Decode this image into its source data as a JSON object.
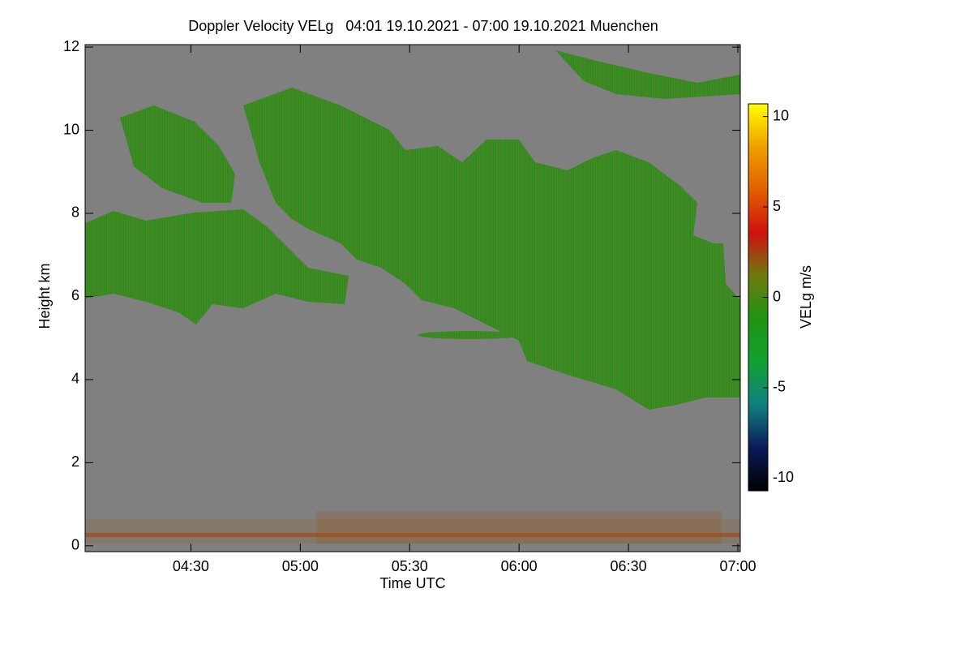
{
  "chart_data": {
    "type": "heatmap",
    "title": "Doppler Velocity VELg   04:01 19.10.2021 - 07:00 19.10.2021 Muenchen",
    "x_label": "Time UTC",
    "y_label": "Height km",
    "xlim": [
      "04:01",
      "07:00"
    ],
    "xticks": [
      "04:30",
      "05:00",
      "05:30",
      "06:00",
      "06:30",
      "07:00"
    ],
    "ylim": [
      -0.14,
      12.06
    ],
    "yticks": [
      0,
      2,
      4,
      6,
      8,
      10,
      12
    ],
    "colorbar_label": "VELg m/s",
    "clim": [
      -10.7,
      10.7
    ],
    "cticks": [
      -10,
      -5,
      0,
      5,
      10
    ],
    "colormap": [
      "#000000",
      "#0a1a5a",
      "#108080",
      "#12a030",
      "#1f9412",
      "#6e7a10",
      "#d01010",
      "#e06000",
      "#f0a000",
      "#ffff00"
    ],
    "background": "#808080"
  }
}
